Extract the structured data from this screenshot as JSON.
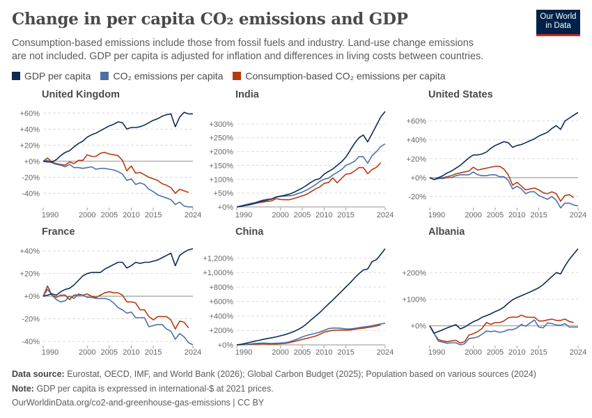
{
  "header": {
    "title": "Change in per capita CO₂ emissions and GDP",
    "subtitle": "Consumption-based emissions include those from fossil fuels and industry. Land-use change emissions are not included. GDP per capita is adjusted for inflation and differences in living costs between countries.",
    "logo_text": "Our World in Data"
  },
  "footer": {
    "source_label": "Data source:",
    "source": "Eurostat, OECD, IMF, and World Bank (2026); Global Carbon Budget (2025); Population based on various sources (2024)",
    "note_label": "Note:",
    "note": "GDP per capita is expressed in international-$ at 2021 prices.",
    "url": "OurWorldinData.org/co2-and-greenhouse-gas-emissions | CC BY"
  },
  "chart_data": {
    "type": "line",
    "legend": "top",
    "grid": true,
    "series_names": [
      "GDP per capita",
      "CO₂ emissions per capita",
      "Consumption-based CO₂ emissions per capita"
    ],
    "colors": {
      "gdp": "#0d2a56",
      "co2": "#4e6fa5",
      "cons": "#b7390e"
    },
    "x_ticks": [
      "1990",
      "2000",
      "2005",
      "2010",
      "2015",
      "2024"
    ],
    "x_start": 1990,
    "x_end": 2024,
    "panels": [
      {
        "title": "United Kingdom",
        "ylim": [
          -57,
          62
        ],
        "y_ticks": [
          {
            "v": 60,
            "l": "+60%"
          },
          {
            "v": 40,
            "l": "+40%"
          },
          {
            "v": 20,
            "l": "+20%"
          },
          {
            "v": 0,
            "l": "+0%"
          },
          {
            "v": -20,
            "l": "-20%"
          },
          {
            "v": -40,
            "l": "-40%"
          }
        ],
        "gdp": [
          0,
          -1,
          -1,
          2,
          7,
          11,
          13,
          18,
          22,
          25,
          30,
          33,
          35,
          38,
          41,
          44,
          46,
          49,
          48,
          40,
          42,
          42,
          43,
          45,
          48,
          51,
          53,
          56,
          58,
          59,
          43,
          55,
          61,
          59,
          59
        ],
        "co2": [
          0,
          1,
          -2,
          -4,
          -5,
          -7,
          -4,
          -8,
          -8,
          -9,
          -8,
          -7,
          -10,
          -9,
          -9,
          -10,
          -11,
          -13,
          -16,
          -24,
          -22,
          -29,
          -27,
          -29,
          -35,
          -38,
          -42,
          -44,
          -46,
          -48,
          -54,
          -51,
          -56,
          -57,
          -57
        ],
        "cons": [
          0,
          4,
          -1,
          -3,
          -4,
          -5,
          -1,
          -3,
          1,
          1,
          8,
          6,
          6,
          10,
          11,
          9,
          8,
          7,
          1,
          -12,
          -6,
          -15,
          -14,
          -17,
          -20,
          -22,
          -24,
          -28,
          -30,
          -33,
          -40,
          -35,
          -37,
          -39
        ]
      },
      {
        "title": "India",
        "ylim": [
          0,
          345
        ],
        "y_ticks": [
          {
            "v": 300,
            "l": "+300%"
          },
          {
            "v": 250,
            "l": "+250%"
          },
          {
            "v": 200,
            "l": "+200%"
          },
          {
            "v": 150,
            "l": "+150%"
          },
          {
            "v": 100,
            "l": "+100%"
          },
          {
            "v": 50,
            "l": "+50%"
          },
          {
            "v": 0,
            "l": "+0%"
          }
        ],
        "gdp": [
          0,
          2,
          5,
          8,
          12,
          17,
          22,
          25,
          29,
          36,
          39,
          42,
          46,
          52,
          60,
          68,
          78,
          89,
          98,
          102,
          118,
          128,
          137,
          150,
          163,
          180,
          205,
          230,
          250,
          260,
          235,
          265,
          295,
          325,
          345
        ],
        "co2": [
          0,
          4,
          8,
          12,
          15,
          20,
          25,
          28,
          28,
          35,
          38,
          39,
          40,
          42,
          48,
          54,
          61,
          70,
          80,
          92,
          100,
          104,
          115,
          125,
          135,
          150,
          157,
          165,
          182,
          181,
          158,
          185,
          200,
          218,
          228
        ],
        "cons": [
          0,
          3,
          6,
          9,
          12,
          15,
          18,
          20,
          22,
          30,
          27,
          26,
          26,
          30,
          35,
          40,
          45,
          55,
          65,
          72,
          85,
          88,
          105,
          87,
          103,
          118,
          120,
          130,
          142,
          142,
          120,
          135,
          143,
          160
        ]
      },
      {
        "title": "United States",
        "ylim": [
          -31,
          70
        ],
        "y_ticks": [
          {
            "v": 60,
            "l": "+60%"
          },
          {
            "v": 40,
            "l": "+40%"
          },
          {
            "v": 20,
            "l": "+20%"
          },
          {
            "v": 0,
            "l": "+0%"
          },
          {
            "v": -20,
            "l": "-20%"
          }
        ],
        "gdp": [
          0,
          -2,
          0,
          2,
          5,
          7,
          10,
          13,
          17,
          21,
          24,
          24,
          25,
          27,
          31,
          34,
          36,
          38,
          37,
          32,
          34,
          35,
          37,
          39,
          41,
          44,
          46,
          48,
          52,
          55,
          51,
          60,
          63,
          66,
          69
        ],
        "co2": [
          0,
          -2,
          -1,
          -1,
          0,
          0,
          2,
          3,
          3,
          3,
          6,
          3,
          2,
          2,
          3,
          3,
          1,
          1,
          -3,
          -12,
          -9,
          -12,
          -17,
          -15,
          -15,
          -19,
          -21,
          -23,
          -20,
          -24,
          -32,
          -27,
          -27,
          -29,
          -30
        ],
        "cons": [
          0,
          -2,
          -1,
          0,
          1,
          2,
          4,
          5,
          6,
          7,
          11,
          8,
          9,
          10,
          11,
          12,
          12,
          9,
          3,
          -8,
          -5,
          -9,
          -13,
          -12,
          -11,
          -13,
          -16,
          -17,
          -15,
          -17,
          -25,
          -19,
          -18,
          -21
        ]
      },
      {
        "title": "France",
        "ylim": [
          -43,
          42
        ],
        "y_ticks": [
          {
            "v": 40,
            "l": "+40%"
          },
          {
            "v": 20,
            "l": "+20%"
          },
          {
            "v": 0,
            "l": "+0%"
          },
          {
            "v": -20,
            "l": "-20%"
          },
          {
            "v": -40,
            "l": "-40%"
          }
        ],
        "gdp": [
          0,
          1,
          2,
          1,
          4,
          6,
          7,
          10,
          14,
          18,
          20,
          21,
          21,
          21,
          24,
          26,
          28,
          30,
          30,
          25,
          27,
          30,
          29,
          30,
          30,
          31,
          32,
          34,
          36,
          38,
          27,
          36,
          39,
          41,
          42
        ],
        "co2": [
          0,
          6,
          1,
          -3,
          -5,
          -4,
          0,
          -2,
          2,
          1,
          -1,
          -1,
          -2,
          -2,
          -2,
          -3,
          -6,
          -10,
          -12,
          -15,
          -14,
          -19,
          -19,
          -19,
          -27,
          -26,
          -25,
          -25,
          -29,
          -31,
          -38,
          -33,
          -36,
          -41,
          -43
        ],
        "cons": [
          0,
          9,
          1,
          -1,
          1,
          1,
          -3,
          1,
          1,
          1,
          2,
          0,
          -1,
          1,
          3,
          4,
          3,
          3,
          1,
          -5,
          -5,
          -6,
          -12,
          -12,
          -18,
          -21,
          -18,
          -18,
          -18,
          -21,
          -29,
          -22,
          -23,
          -28
        ]
      },
      {
        "title": "China",
        "ylim": [
          0,
          1330
        ],
        "y_ticks": [
          {
            "v": 1200,
            "l": "+1,200%"
          },
          {
            "v": 1000,
            "l": "+1,000%"
          },
          {
            "v": 800,
            "l": "+800%"
          },
          {
            "v": 600,
            "l": "+600%"
          },
          {
            "v": 400,
            "l": "+400%"
          },
          {
            "v": 200,
            "l": "+200%"
          },
          {
            "v": 0,
            "l": "+0%"
          }
        ],
        "gdp": [
          0,
          8,
          20,
          35,
          50,
          62,
          75,
          88,
          98,
          110,
          125,
          140,
          160,
          182,
          210,
          245,
          290,
          345,
          395,
          445,
          505,
          565,
          620,
          680,
          740,
          800,
          860,
          925,
          985,
          1035,
          1050,
          1150,
          1180,
          1250,
          1330
        ],
        "co2": [
          0,
          3,
          8,
          12,
          18,
          22,
          25,
          22,
          20,
          22,
          25,
          30,
          40,
          60,
          85,
          110,
          130,
          145,
          160,
          175,
          200,
          225,
          232,
          232,
          228,
          220,
          220,
          228,
          238,
          248,
          255,
          265,
          278,
          290,
          300
        ],
        "cons": [
          0,
          2,
          5,
          8,
          10,
          12,
          14,
          12,
          10,
          12,
          15,
          20,
          30,
          45,
          60,
          75,
          90,
          105,
          120,
          145,
          175,
          190,
          200,
          203,
          205,
          203,
          205,
          215,
          225,
          230,
          240,
          250,
          262,
          275
        ]
      },
      {
        "title": "Albania",
        "ylim": [
          -72,
          290
        ],
        "y_ticks": [
          {
            "v": 200,
            "l": "+200%"
          },
          {
            "v": 100,
            "l": "+100%"
          },
          {
            "v": 0,
            "l": "+0%"
          }
        ],
        "gdp": [
          0,
          -28,
          -22,
          -15,
          -8,
          -2,
          4,
          -12,
          -5,
          5,
          15,
          22,
          32,
          38,
          45,
          53,
          60,
          70,
          85,
          98,
          106,
          113,
          120,
          127,
          135,
          143,
          155,
          170,
          185,
          200,
          195,
          225,
          250,
          270,
          290
        ],
        "co2": [
          0,
          -30,
          -58,
          -62,
          -66,
          -64,
          -64,
          -72,
          -68,
          -48,
          -46,
          -42,
          -32,
          -20,
          -22,
          -20,
          -25,
          -22,
          -15,
          -15,
          -8,
          5,
          -2,
          10,
          22,
          -5,
          -8,
          10,
          8,
          3,
          2,
          8,
          -5,
          -5,
          -5
        ],
        "cons": [
          0,
          -30,
          -52,
          -57,
          -60,
          -57,
          -55,
          -65,
          -60,
          -35,
          -30,
          -22,
          -10,
          12,
          5,
          12,
          12,
          18,
          30,
          33,
          32,
          40,
          33,
          32,
          32,
          18,
          18,
          22,
          25,
          20,
          20,
          25,
          16,
          12
        ]
      }
    ]
  }
}
